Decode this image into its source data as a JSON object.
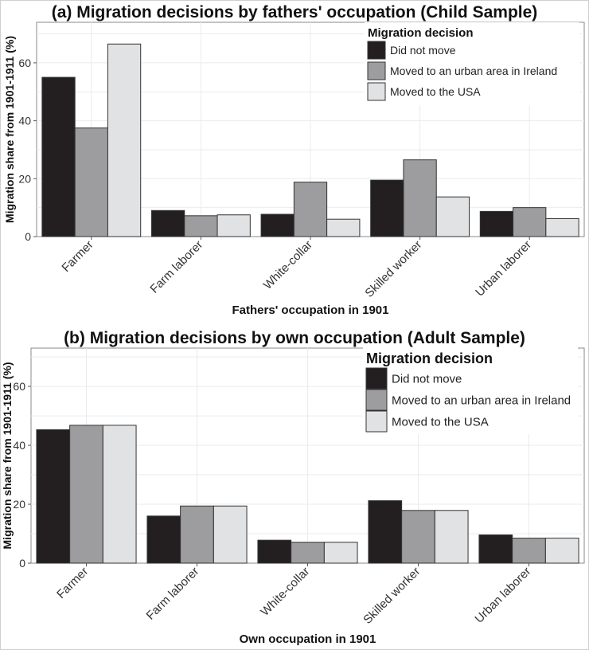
{
  "chart_data": [
    {
      "type": "bar",
      "title": "(a) Migration decisions by fathers' occupation (Child Sample)",
      "xlabel": "Fathers' occupation in 1901",
      "ylabel": "Migration share from 1901-1911 (%)",
      "ylim": [
        0,
        74
      ],
      "yticks": [
        0,
        20,
        40,
        60
      ],
      "grid": true,
      "legend_position": "top-right",
      "legend_title": "Migration decision",
      "categories": [
        "Farmer",
        "Farm laborer",
        "White-collar",
        "Skilled worker",
        "Urban laborer"
      ],
      "series": [
        {
          "name": "Did not move",
          "color": "#231f20",
          "values": [
            55,
            9,
            7.7,
            19.5,
            8.7
          ]
        },
        {
          "name": "Moved to an urban area in Ireland",
          "color": "#9d9d9f",
          "values": [
            37.5,
            7.2,
            18.8,
            26.5,
            10
          ]
        },
        {
          "name": "Moved to the USA",
          "color": "#e1e2e4",
          "values": [
            66.5,
            7.5,
            6,
            13.7,
            6.2
          ]
        }
      ]
    },
    {
      "type": "bar",
      "title": "(b) Migration decisions by own occupation (Adult Sample)",
      "xlabel": "Own occupation in 1901",
      "ylabel": "Migration share from 1901-1911 (%)",
      "ylim": [
        0,
        73
      ],
      "yticks": [
        0,
        20,
        40,
        60
      ],
      "grid": true,
      "legend_position": "top-right",
      "legend_title": "Migration decision",
      "categories": [
        "Farmer",
        "Farm laborer",
        "White-collar",
        "Skilled worker",
        "Urban laborer"
      ],
      "series": [
        {
          "name": "Did not move",
          "color": "#231f20",
          "values": [
            45.3,
            16,
            7.8,
            21.2,
            9.6
          ]
        },
        {
          "name": "Moved to an urban area in Ireland",
          "color": "#9d9d9f",
          "values": [
            46.8,
            19.4,
            7.1,
            17.9,
            8.5
          ]
        },
        {
          "name": "Moved to the USA",
          "color": "#e1e2e4",
          "values": [
            46.8,
            19.4,
            7.1,
            17.9,
            8.5
          ]
        }
      ]
    }
  ]
}
